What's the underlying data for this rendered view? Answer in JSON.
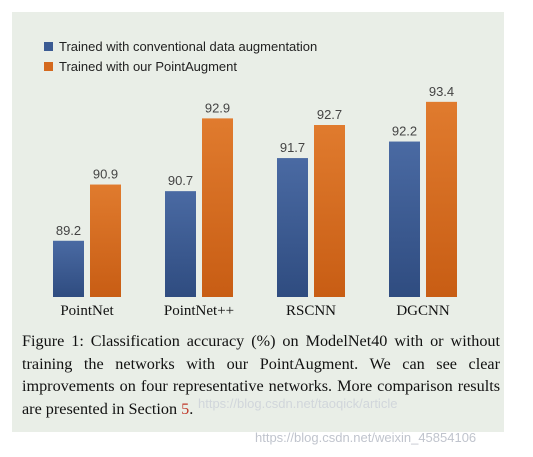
{
  "chart_data": {
    "type": "bar",
    "categories": [
      "PointNet",
      "PointNet++",
      "RSCNN",
      "DGCNN"
    ],
    "series": [
      {
        "name": "Trained with conventional data augmentation",
        "values": [
          89.2,
          90.7,
          91.7,
          92.2
        ],
        "color": "#3b5b93"
      },
      {
        "name": "Trained with our PointAugment",
        "values": [
          90.9,
          92.9,
          92.7,
          93.4
        ],
        "color": "#d4691e"
      }
    ],
    "title": "",
    "xlabel": "",
    "ylabel": "",
    "ylim": [
      87.5,
      94.0
    ],
    "grid": false,
    "legend_position": "top-left",
    "value_labels": true
  },
  "caption": {
    "prefix": "Figure 1: Classification accuracy (%) on ModelNet40 with or without training the networks with our PointAugment. We can see clear improvements on four representative networks. More comparison results are presented in Section",
    "section_ref": "5",
    "suffix": "."
  },
  "watermarks": {
    "overlay": "https://blog.csdn.net/taoqick/article",
    "footer": "https://blog.csdn.net/weixin_45854106"
  },
  "colors": {
    "panel_background": "#e9eee7",
    "conventional": "#3b5b93",
    "pointaugment": "#d4691e",
    "section_ref": "#c0392b"
  }
}
